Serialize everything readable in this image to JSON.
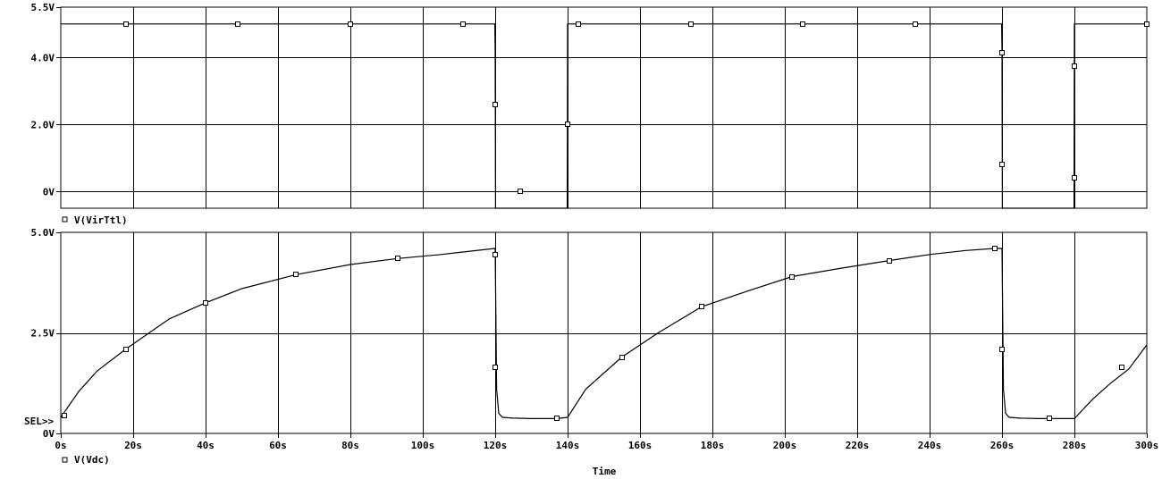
{
  "chart_data": [
    {
      "type": "line",
      "legend": "V(VirTtl)",
      "xlabel": "",
      "xlim": [
        0,
        300
      ],
      "ylim": [
        -0.5,
        5.5
      ],
      "y_ticks": [
        0,
        2,
        4,
        5.5
      ],
      "y_tick_labels": [
        "0V",
        "2.0V",
        "4.0V",
        "5.5V"
      ],
      "grid": true,
      "series": [
        {
          "x": [
            0,
            119.9,
            120,
            120.1,
            139.9,
            140,
            259.9,
            260,
            260.1,
            279.9,
            280,
            300
          ],
          "y": [
            5,
            5,
            4.2,
            -0.5,
            -0.5,
            5,
            5,
            4.2,
            -0.5,
            -0.5,
            5,
            5
          ]
        }
      ],
      "markers": [
        {
          "x": 18,
          "y": 5
        },
        {
          "x": 49,
          "y": 5
        },
        {
          "x": 80,
          "y": 5
        },
        {
          "x": 111,
          "y": 5
        },
        {
          "x": 120,
          "y": 2.6
        },
        {
          "x": 127,
          "y": 0
        },
        {
          "x": 140,
          "y": 2
        },
        {
          "x": 143,
          "y": 5
        },
        {
          "x": 174,
          "y": 5
        },
        {
          "x": 205,
          "y": 5
        },
        {
          "x": 236,
          "y": 5
        },
        {
          "x": 260,
          "y": 4.15
        },
        {
          "x": 260,
          "y": 0.8
        },
        {
          "x": 280,
          "y": 3.75
        },
        {
          "x": 280,
          "y": 0.4
        },
        {
          "x": 300,
          "y": 5
        }
      ]
    },
    {
      "type": "line",
      "legend": "V(Vdc)",
      "selector": "SEL>>",
      "xlabel": "Time",
      "xlim": [
        0,
        300
      ],
      "ylim": [
        0,
        5
      ],
      "y_ticks": [
        0,
        2.5,
        5
      ],
      "y_tick_labels": [
        "0V",
        "2.5V",
        "5.0V"
      ],
      "x_ticks": [
        0,
        20,
        40,
        60,
        80,
        100,
        120,
        140,
        160,
        180,
        200,
        220,
        240,
        260,
        280,
        300
      ],
      "x_tick_labels": [
        "0s",
        "20s",
        "40s",
        "60s",
        "80s",
        "100s",
        "120s",
        "140s",
        "160s",
        "180s",
        "200s",
        "220s",
        "240s",
        "260s",
        "280s",
        "300s"
      ],
      "grid": true,
      "series": [
        {
          "x": [
            0,
            5,
            10,
            18,
            30,
            40,
            50,
            65,
            80,
            93,
            105,
            119.9,
            120,
            120.4,
            121,
            122,
            125,
            130,
            137,
            140,
            145,
            150,
            155,
            165,
            177,
            190,
            202,
            215,
            229,
            240,
            250,
            258,
            259.9,
            260,
            260.4,
            261,
            262,
            265,
            270,
            273,
            280,
            285,
            290,
            295,
            300
          ],
          "y": [
            0.4,
            1.05,
            1.55,
            2.1,
            2.85,
            3.25,
            3.6,
            3.95,
            4.2,
            4.35,
            4.45,
            4.6,
            4.6,
            1.1,
            0.5,
            0.4,
            0.38,
            0.37,
            0.37,
            0.4,
            1.1,
            1.5,
            1.9,
            2.5,
            3.15,
            3.55,
            3.9,
            4.1,
            4.3,
            4.45,
            4.55,
            4.6,
            4.6,
            4.6,
            1.1,
            0.5,
            0.4,
            0.38,
            0.37,
            0.37,
            0.37,
            0.85,
            1.25,
            1.6,
            2.2
          ]
        }
      ],
      "markers": [
        {
          "x": 1,
          "y": 0.45
        },
        {
          "x": 18,
          "y": 2.1
        },
        {
          "x": 40,
          "y": 3.25
        },
        {
          "x": 65,
          "y": 3.95
        },
        {
          "x": 93,
          "y": 4.35
        },
        {
          "x": 120,
          "y": 4.45
        },
        {
          "x": 120,
          "y": 1.65
        },
        {
          "x": 137,
          "y": 0.37
        },
        {
          "x": 155,
          "y": 1.9
        },
        {
          "x": 177,
          "y": 3.15
        },
        {
          "x": 202,
          "y": 3.9
        },
        {
          "x": 229,
          "y": 4.3
        },
        {
          "x": 258,
          "y": 4.6
        },
        {
          "x": 260,
          "y": 2.1
        },
        {
          "x": 273,
          "y": 0.37
        },
        {
          "x": 293,
          "y": 1.65
        }
      ]
    }
  ]
}
